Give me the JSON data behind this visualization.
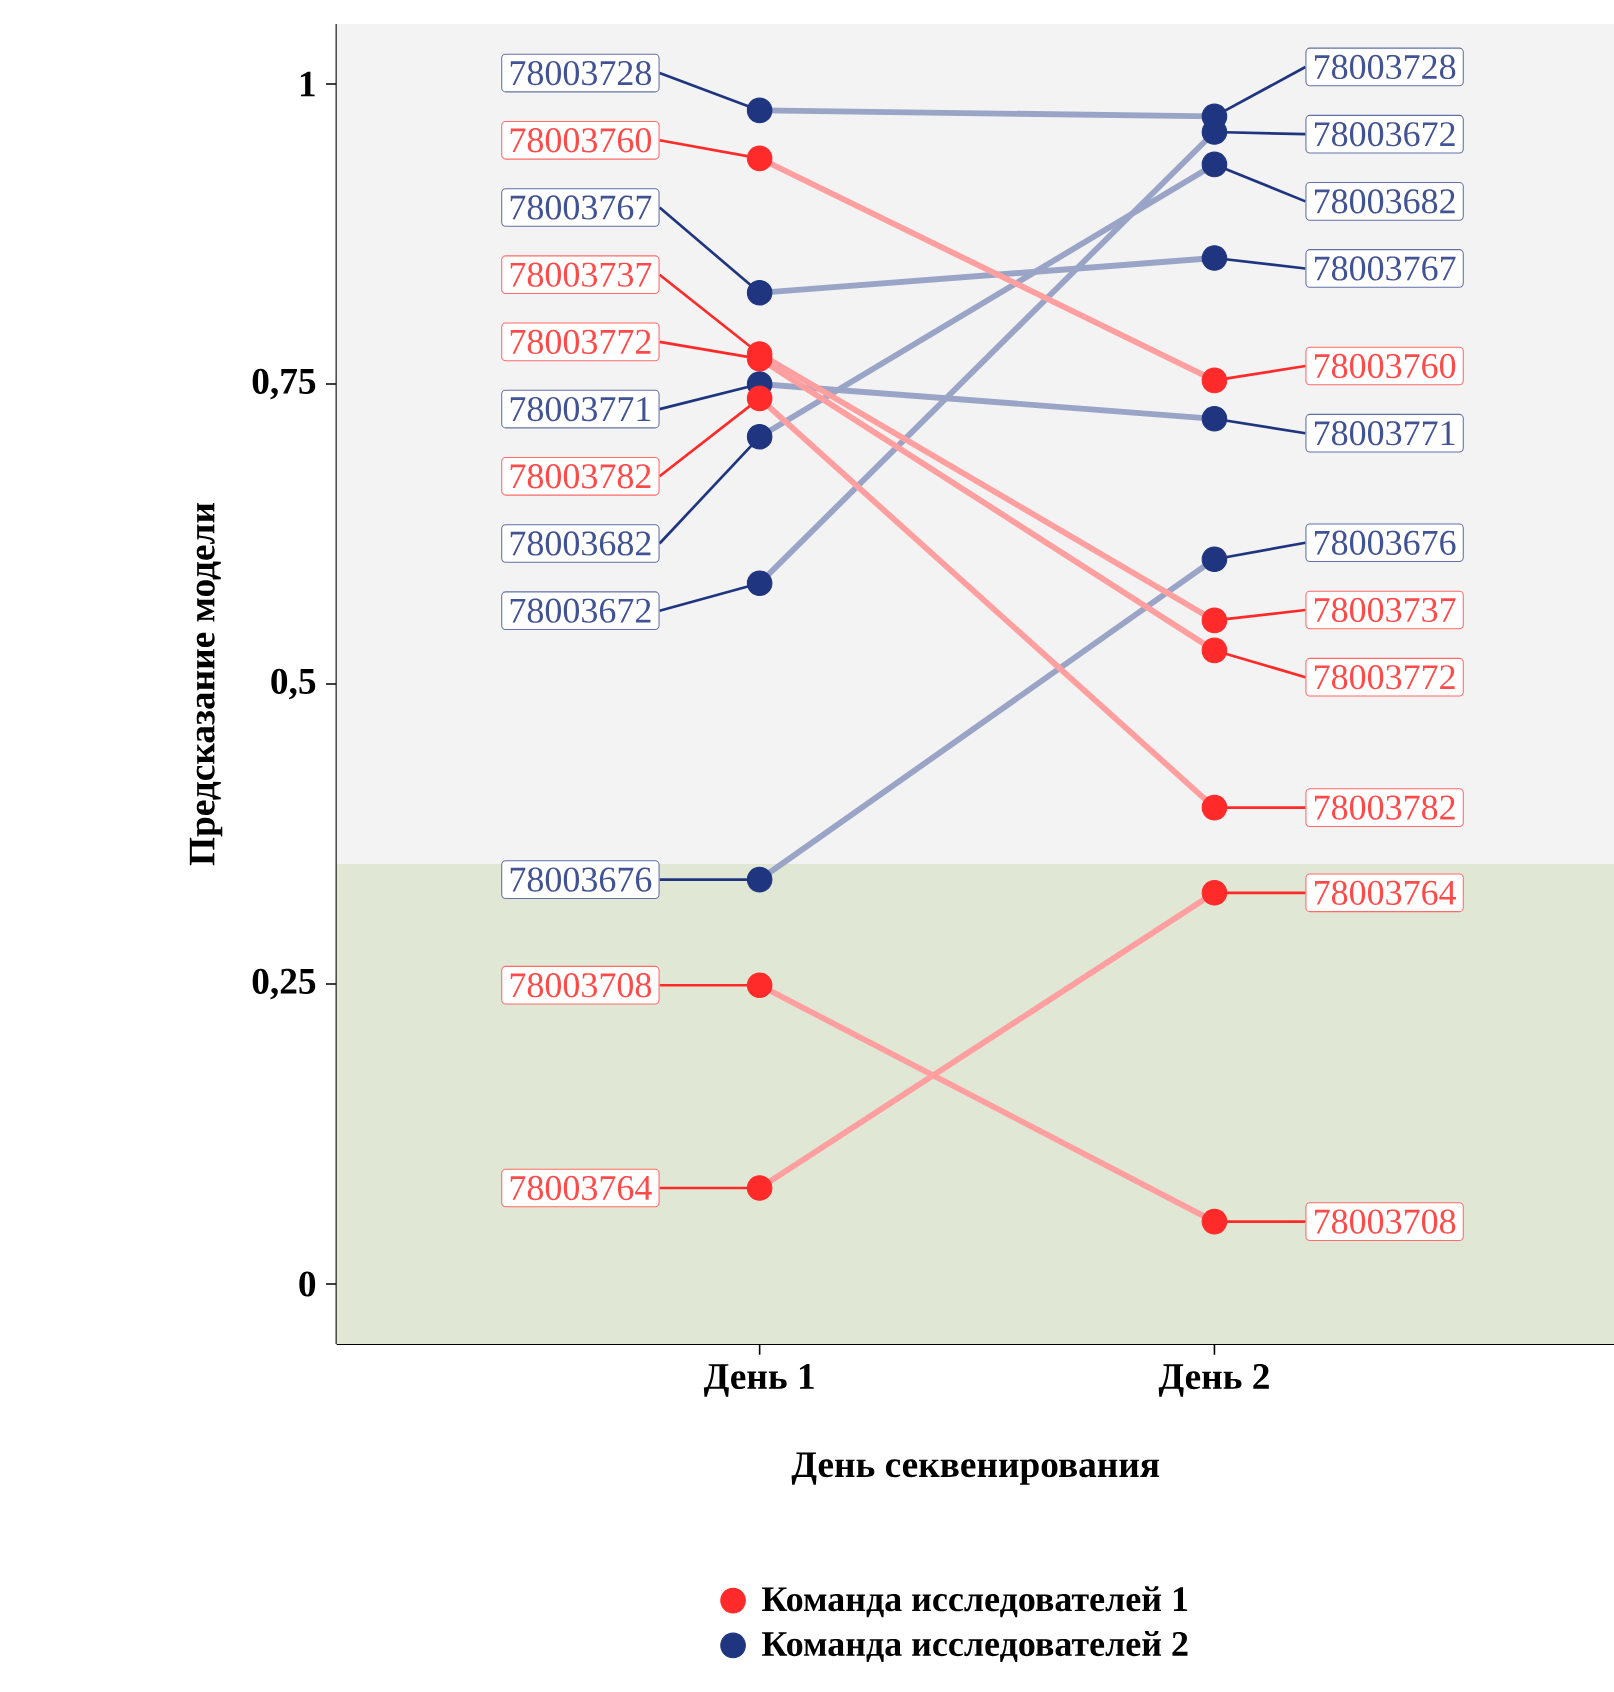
{
  "chart_data": {
    "type": "line",
    "xlabel": "День секвенирования",
    "ylabel": "Предсказание модели",
    "categories": [
      "День 1",
      "День 2"
    ],
    "ylim": [
      -0.05,
      1.05
    ],
    "yticks": [
      {
        "value": 0,
        "label": "0"
      },
      {
        "value": 0.25,
        "label": "0,25"
      },
      {
        "value": 0.5,
        "label": "0,5"
      },
      {
        "value": 0.75,
        "label": "0,75"
      },
      {
        "value": 1,
        "label": "1"
      }
    ],
    "bands": [
      {
        "axis": "y",
        "from": 0.35,
        "to": 1.05,
        "color": "#f3f3f3"
      },
      {
        "axis": "y",
        "from": -0.05,
        "to": 0.35,
        "color": "#e0e7d4"
      }
    ],
    "marker": "circle",
    "line_style": "solid",
    "legend": "bottom",
    "series": [
      {
        "name": "Команда исследователей 1",
        "color": "#ff2a2a",
        "values": [
          null,
          null
        ]
      },
      {
        "name": "Команда исследователей 2",
        "color": "#1f3580",
        "values": [
          null,
          null
        ]
      },
      {
        "name": "78003728",
        "color": "#1f3580",
        "values": [
          0.978,
          0.973
        ]
      },
      {
        "name": "78003672",
        "color": "#1f3580",
        "values": [
          0.584,
          0.96
        ]
      },
      {
        "name": "78003682",
        "color": "#1f3580",
        "values": [
          0.706,
          0.933
        ]
      },
      {
        "name": "78003767",
        "color": "#1f3580",
        "values": [
          0.826,
          0.855
        ]
      },
      {
        "name": "78003771",
        "color": "#1f3580",
        "values": [
          0.75,
          0.721
        ]
      },
      {
        "name": "78003676",
        "color": "#1f3580",
        "values": [
          0.337,
          0.604
        ]
      },
      {
        "name": "78003760",
        "color": "#ff2a2a",
        "values": [
          0.938,
          0.753
        ]
      },
      {
        "name": "78003737",
        "color": "#ff2a2a",
        "values": [
          0.775,
          0.553
        ]
      },
      {
        "name": "78003772",
        "color": "#ff2a2a",
        "values": [
          0.771,
          0.528
        ]
      },
      {
        "name": "78003782",
        "color": "#ff2a2a",
        "values": [
          0.738,
          0.397
        ]
      },
      {
        "name": "78003708",
        "color": "#ff2a2a",
        "values": [
          0.249,
          0.052
        ]
      },
      {
        "name": "78003764",
        "color": "#ff2a2a",
        "values": [
          0.08,
          0.326
        ]
      }
    ]
  }
}
